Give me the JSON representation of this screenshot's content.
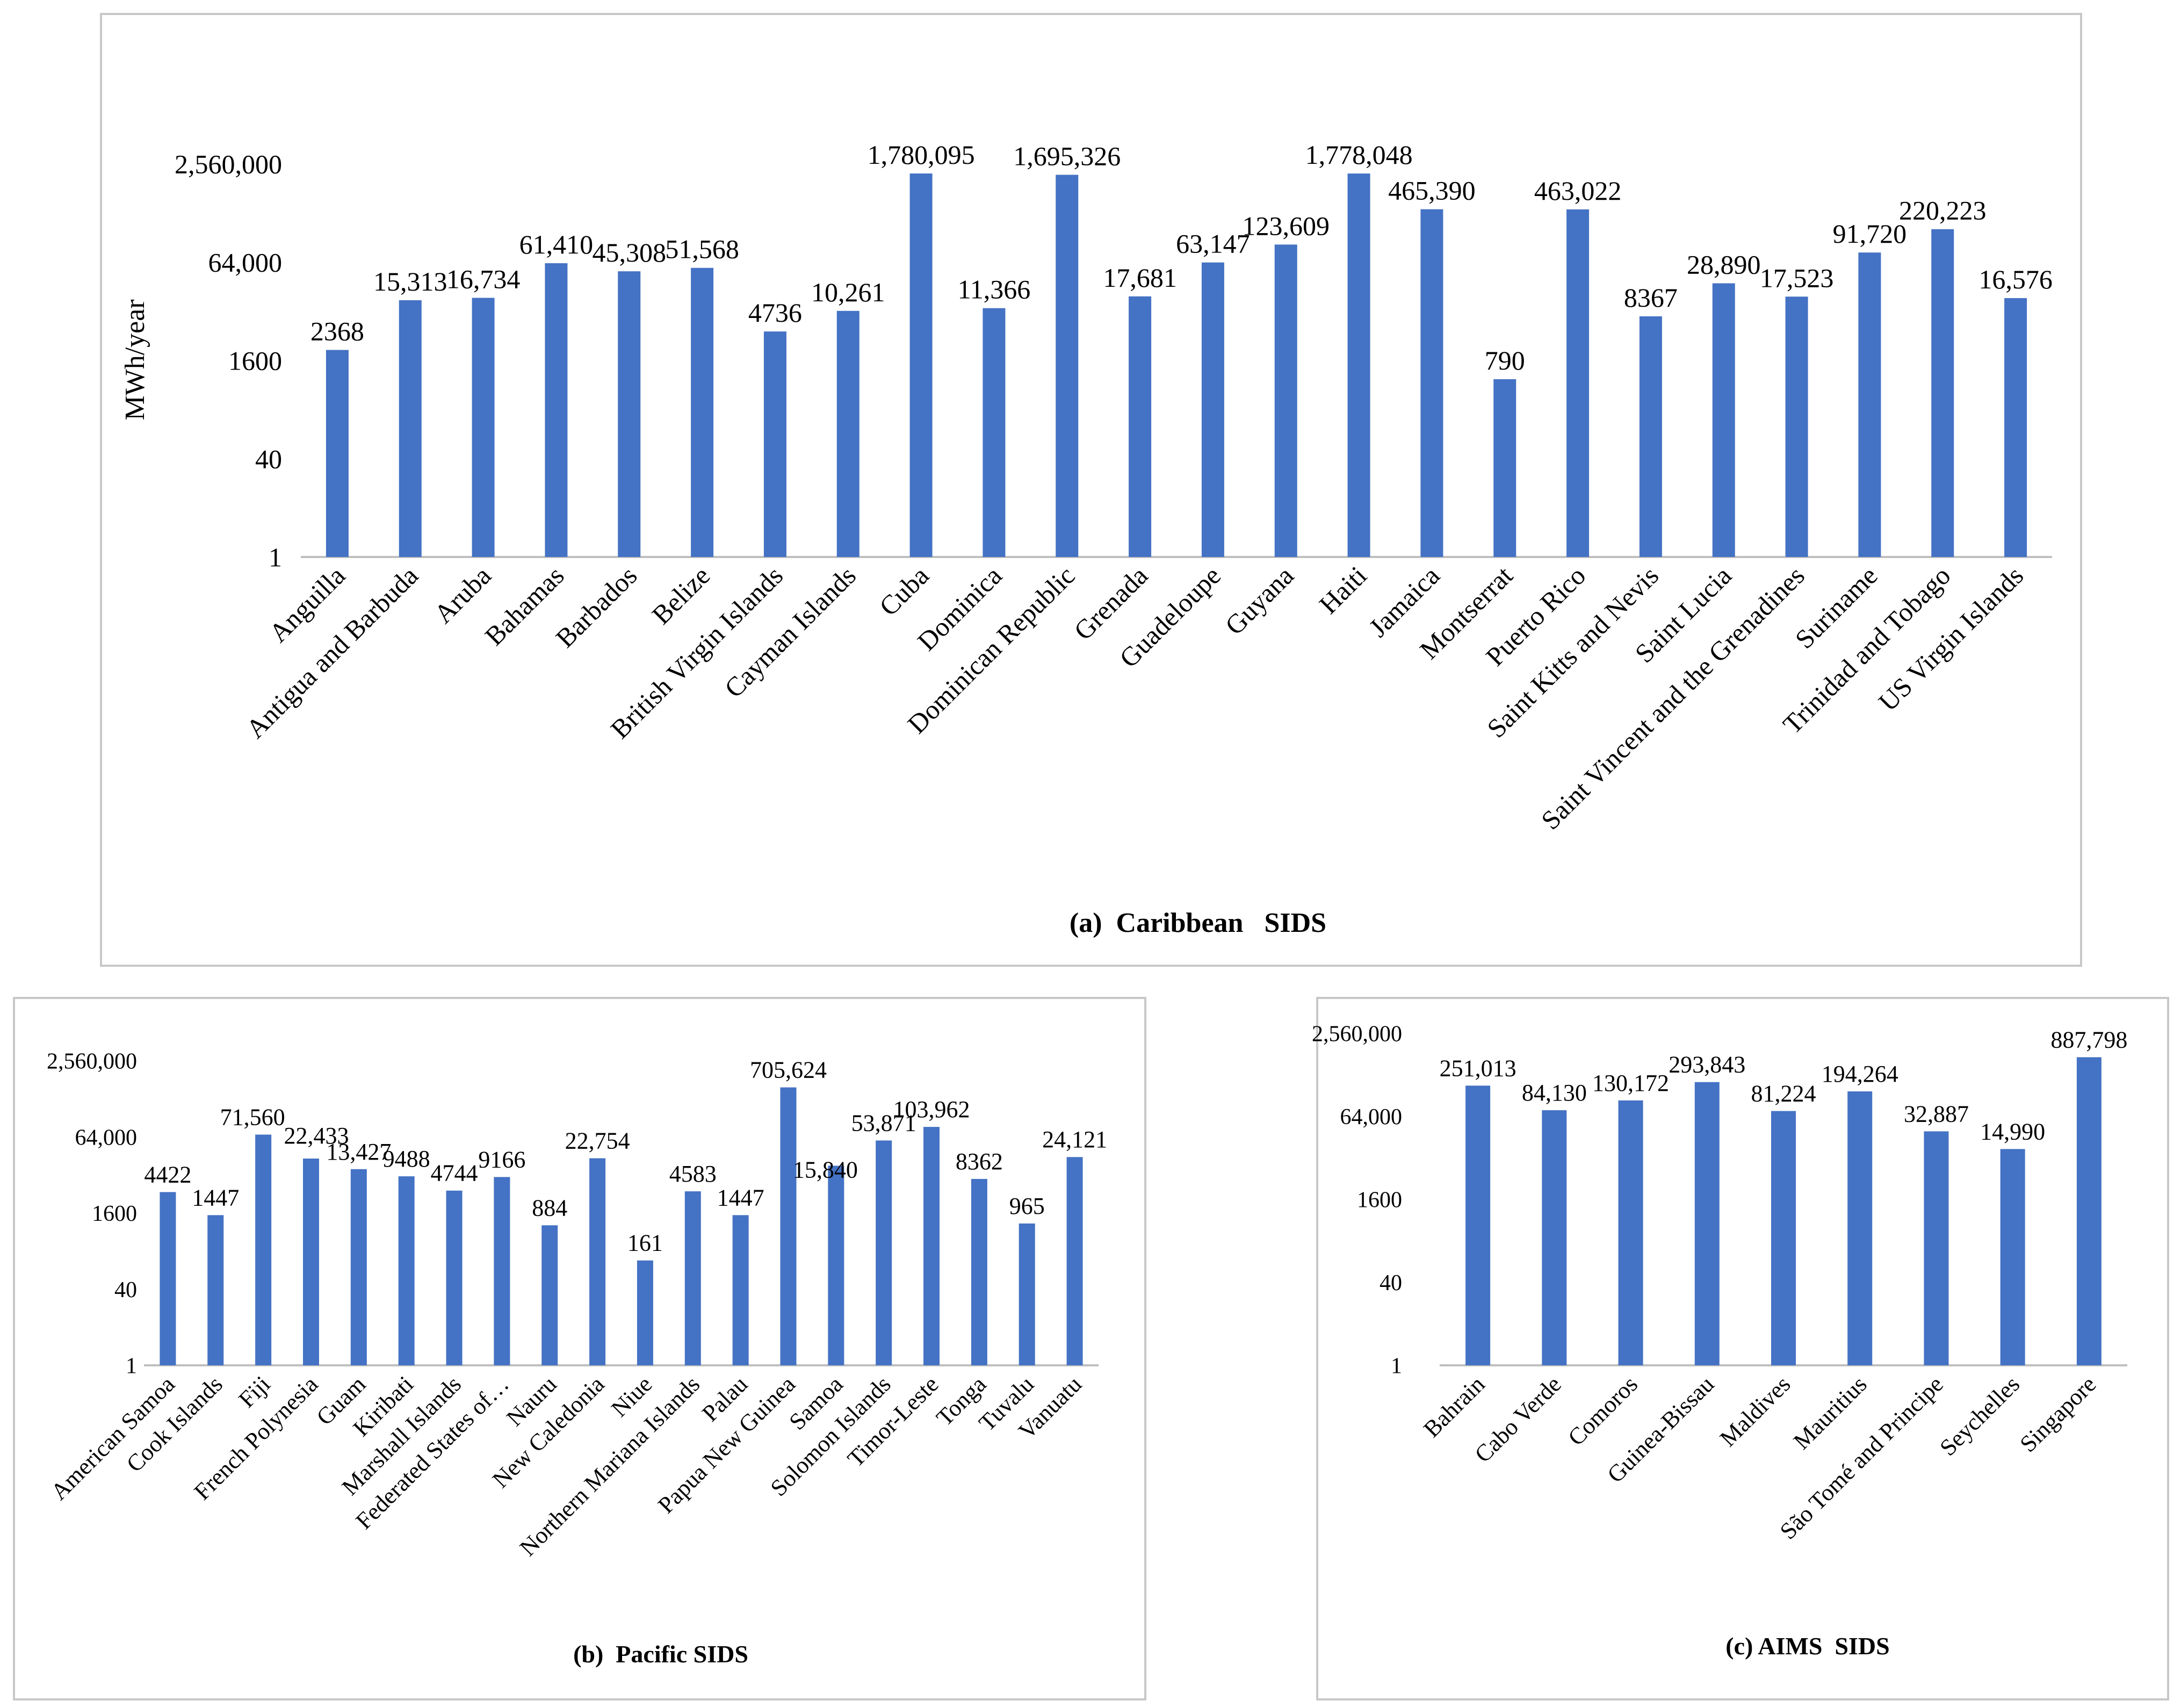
{
  "colors": {
    "bar": "#4472c4",
    "axis": "#bfbfbf",
    "panel_border": "#c8c8c8",
    "text": "#000000"
  },
  "chart_data": [
    {
      "id": "caribbean",
      "type": "bar",
      "title": "(a)  Caribbean   SIDS",
      "ylabel": "MWh/year",
      "xlabel": "",
      "scale": "log",
      "ylim": [
        1,
        2560000
      ],
      "yticks": [
        1,
        40,
        1600,
        64000,
        2560000
      ],
      "ytick_labels": [
        "1",
        "40",
        "1600",
        "64,000",
        "2,560,000"
      ],
      "categories": [
        "Anguilla",
        "Antigua and Barbuda",
        "Aruba",
        "Bahamas",
        "Barbados",
        "Belize",
        "British Virgin Islands",
        "Cayman Islands",
        "Cuba",
        "Dominica",
        "Dominican Republic",
        "Grenada",
        "Guadeloupe",
        "Guyana",
        "Haiti",
        "Jamaica",
        "Montserrat",
        "Puerto Rico",
        "Saint Kitts and Nevis",
        "Saint Lucia",
        "Saint Vincent and the Grenadines",
        "Suriname",
        "Trinidad and Tobago",
        "US Virgin Islands"
      ],
      "values": [
        2368,
        15313,
        16734,
        61410,
        45308,
        51568,
        4736,
        10261,
        1780095,
        11366,
        1695326,
        17681,
        63147,
        123609,
        1778048,
        465390,
        790,
        463022,
        8367,
        28890,
        17523,
        91720,
        220223,
        16576
      ],
      "value_labels": [
        "2368",
        "15,313",
        "16,734",
        "61,410",
        "45,308",
        "51,568",
        "4736",
        "10,261",
        "1,780,095",
        "11,366",
        "1,695,326",
        "17,681",
        "63,147",
        "123,609",
        "1,778,048",
        "465,390",
        "790",
        "463,022",
        "8367",
        "28,890",
        "17,523",
        "91,720",
        "220,223",
        "16,576"
      ],
      "grid": false,
      "legend": "none"
    },
    {
      "id": "pacific",
      "type": "bar",
      "title": "(b)  Pacific SIDS",
      "ylabel": "",
      "xlabel": "",
      "scale": "log",
      "ylim": [
        1,
        2560000
      ],
      "yticks": [
        1,
        40,
        1600,
        64000,
        2560000
      ],
      "ytick_labels": [
        "1",
        "40",
        "1600",
        "64,000",
        "2,560,000"
      ],
      "categories": [
        "American Samoa",
        "Cook Islands",
        "Fiji",
        "French Polynesia",
        "Guam",
        "Kiribati",
        "Marshall Islands",
        "Federated States of…",
        "Nauru",
        "New Caledonia",
        "Niue",
        "Northern Mariana Islands",
        "Palau",
        "Papua New Guinea",
        "Samoa",
        "Solomon Islands",
        "Timor-Leste",
        "Tonga",
        "Tuvalu",
        "Vanuatu"
      ],
      "values": [
        4422,
        1447,
        71560,
        22433,
        13427,
        9488,
        4744,
        9166,
        884,
        22754,
        161,
        4583,
        1447,
        705624,
        15840,
        53871,
        103962,
        8362,
        965,
        24121
      ],
      "value_labels": [
        "4422",
        "1447",
        "71,560",
        "22,433",
        "13,427",
        "9488",
        "4744",
        "9166",
        "884",
        "22,754",
        "161",
        "4583",
        "1447",
        "705,624",
        "15,840",
        "53,871",
        "103,962",
        "8362",
        "965",
        "24,121"
      ],
      "grid": false,
      "legend": "none"
    },
    {
      "id": "aims",
      "type": "bar",
      "title": "(c) AIMS  SIDS",
      "ylabel": "",
      "xlabel": "",
      "scale": "log",
      "ylim": [
        1,
        2560000
      ],
      "yticks": [
        1,
        40,
        1600,
        64000,
        2560000
      ],
      "ytick_labels": [
        "1",
        "40",
        "1600",
        "64,000",
        "2,560,000"
      ],
      "categories": [
        "Bahrain",
        "Cabo Verde",
        "Comoros",
        "Guinea-Bissau",
        "Maldives",
        "Mauritius",
        "São Tomé and Principe",
        "Seychelles",
        "Singapore"
      ],
      "values": [
        251013,
        84130,
        130172,
        293843,
        81224,
        194264,
        32887,
        14990,
        887798
      ],
      "value_labels": [
        "251,013",
        "84,130",
        "130,172",
        "293,843",
        "81,224",
        "194,264",
        "32,887",
        "14,990",
        "887,798"
      ],
      "grid": false,
      "legend": "none"
    }
  ]
}
